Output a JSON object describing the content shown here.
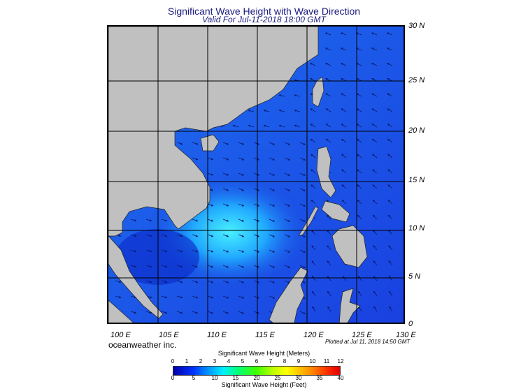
{
  "header": {
    "title": "Significant Wave Height with Wave Direction",
    "subtitle": "Valid For Jul-11-2018 18:00 GMT"
  },
  "map": {
    "lat_labels": [
      "30 N",
      "25 N",
      "20 N",
      "15 N",
      "10 N",
      "5 N",
      "0"
    ],
    "lon_labels": [
      "100 E",
      "105 E",
      "110 E",
      "115 E",
      "120 E",
      "125 E",
      "130 E"
    ],
    "colors": {
      "land": "#c0c0c0",
      "sea_low": "#1030d8",
      "sea_mid": "#1e7cf5",
      "sea_high": "#40e6ff",
      "grid": "#000000",
      "arrow": "#0a1a6a"
    }
  },
  "footer": {
    "brand": "oceanweather inc.",
    "plotted": "Plotted at Jul 11, 2018 14:50 GMT"
  },
  "colorbar": {
    "meters_title": "Significant Wave Height (Meters)",
    "feet_title": "Significant Wave Height (Feet)",
    "meters_ticks": [
      "0",
      "1",
      "2",
      "3",
      "4",
      "5",
      "6",
      "7",
      "8",
      "9",
      "10",
      "11",
      "12"
    ],
    "feet_ticks": [
      "0",
      "5",
      "10",
      "15",
      "20",
      "25",
      "30",
      "35",
      "40"
    ]
  }
}
